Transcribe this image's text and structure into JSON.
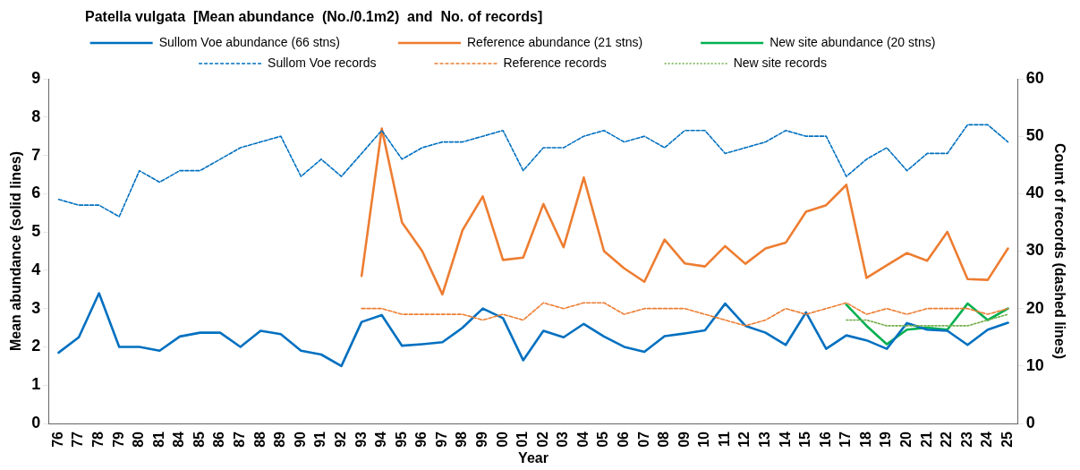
{
  "chart_data": {
    "type": "line",
    "title": "Patella vulgata  [Mean abundance  (No./0.1m2)  and  No. of records]",
    "xlabel": "Year",
    "ylabel": "Mean abundance (solid lines)",
    "y2label": "Count of records (dashed lines)",
    "categories": [
      "76",
      "77",
      "78",
      "79",
      "80",
      "81",
      "84",
      "85",
      "86",
      "87",
      "88",
      "89",
      "90",
      "91",
      "92",
      "93",
      "94",
      "95",
      "96",
      "97",
      "98",
      "99",
      "00",
      "01",
      "02",
      "03",
      "04",
      "05",
      "06",
      "07",
      "08",
      "09",
      "10",
      "11",
      "12",
      "13",
      "14",
      "15",
      "16",
      "17",
      "18",
      "19",
      "20",
      "21",
      "22",
      "23",
      "24",
      "25"
    ],
    "ylim": [
      0,
      9
    ],
    "yticks": [
      0,
      1,
      2,
      3,
      4,
      5,
      6,
      7,
      8,
      9
    ],
    "y2lim": [
      0,
      60
    ],
    "y2ticks": [
      0,
      10,
      20,
      30,
      40,
      50,
      60
    ],
    "grid": false,
    "legend": "top",
    "marker": "none",
    "series": [
      {
        "name": "Sullom Voe abundance (66 stns)",
        "color": "#0070c0",
        "line_style": "solid",
        "values": [
          1.85,
          2.25,
          3.4,
          2.0,
          2.0,
          1.9,
          2.27,
          2.37,
          2.37,
          2.0,
          2.42,
          2.33,
          1.9,
          1.8,
          1.5,
          2.65,
          2.83,
          2.03,
          2.07,
          2.12,
          2.5,
          3.0,
          2.75,
          1.65,
          2.42,
          2.25,
          2.6,
          2.27,
          2.0,
          1.87,
          2.28,
          2.35,
          2.43,
          3.13,
          2.55,
          2.37,
          2.05,
          2.9,
          1.95,
          2.3,
          2.17,
          1.95,
          2.62,
          2.45,
          2.42,
          2.05,
          2.45,
          2.63
        ]
      },
      {
        "name": "Reference abundance (21 stns)",
        "color": "#ed7d31",
        "line_style": "solid",
        "values": [
          null,
          null,
          null,
          null,
          null,
          null,
          null,
          null,
          null,
          null,
          null,
          null,
          null,
          null,
          null,
          3.85,
          7.7,
          5.25,
          4.5,
          3.37,
          5.05,
          5.93,
          4.27,
          4.33,
          5.73,
          4.6,
          6.42,
          4.5,
          4.05,
          3.7,
          4.8,
          4.18,
          4.1,
          4.63,
          4.17,
          4.57,
          4.72,
          5.53,
          5.7,
          6.23,
          3.8,
          4.13,
          4.45,
          4.25,
          5.0,
          3.77,
          3.75,
          4.57
        ]
      },
      {
        "name": "New site abundance (20 stns)",
        "color": "#00b050",
        "line_style": "solid",
        "values": [
          null,
          null,
          null,
          null,
          null,
          null,
          null,
          null,
          null,
          null,
          null,
          null,
          null,
          null,
          null,
          null,
          null,
          null,
          null,
          null,
          null,
          null,
          null,
          null,
          null,
          null,
          null,
          null,
          null,
          null,
          null,
          null,
          null,
          null,
          null,
          null,
          null,
          null,
          null,
          3.1,
          2.55,
          2.07,
          2.45,
          2.5,
          2.45,
          3.13,
          2.7,
          3.0
        ]
      },
      {
        "name": "Sullom Voe records",
        "color": "#0070c0",
        "line_style": "dashed",
        "axis": "y2",
        "values": [
          39,
          38,
          38,
          36,
          44,
          42,
          44,
          44,
          46,
          48,
          49,
          50,
          43,
          46,
          43,
          47,
          51,
          46,
          48,
          49,
          49,
          50,
          51,
          44,
          48,
          48,
          50,
          51,
          49,
          50,
          48,
          51,
          51,
          47,
          48,
          49,
          51,
          50,
          50,
          43,
          46,
          48,
          44,
          47,
          47,
          52,
          52,
          49
        ]
      },
      {
        "name": "Reference records",
        "color": "#ed7d31",
        "line_style": "dashed",
        "axis": "y2",
        "values": [
          null,
          null,
          null,
          null,
          null,
          null,
          null,
          null,
          null,
          null,
          null,
          null,
          null,
          null,
          null,
          20,
          20,
          19,
          19,
          19,
          19,
          18,
          19,
          18,
          21,
          20,
          21,
          21,
          19,
          20,
          20,
          20,
          19,
          18,
          17,
          18,
          20,
          19,
          20,
          21,
          19,
          20,
          19,
          20,
          20,
          20,
          19,
          20
        ]
      },
      {
        "name": "New site records",
        "color": "#70ad47",
        "line_style": "dotted",
        "axis": "y2",
        "values": [
          null,
          null,
          null,
          null,
          null,
          null,
          null,
          null,
          null,
          null,
          null,
          null,
          null,
          null,
          null,
          null,
          null,
          null,
          null,
          null,
          null,
          null,
          null,
          null,
          null,
          null,
          null,
          null,
          null,
          null,
          null,
          null,
          null,
          null,
          null,
          null,
          null,
          null,
          null,
          18,
          18,
          17,
          17,
          17,
          17,
          17,
          18,
          19
        ]
      }
    ]
  }
}
